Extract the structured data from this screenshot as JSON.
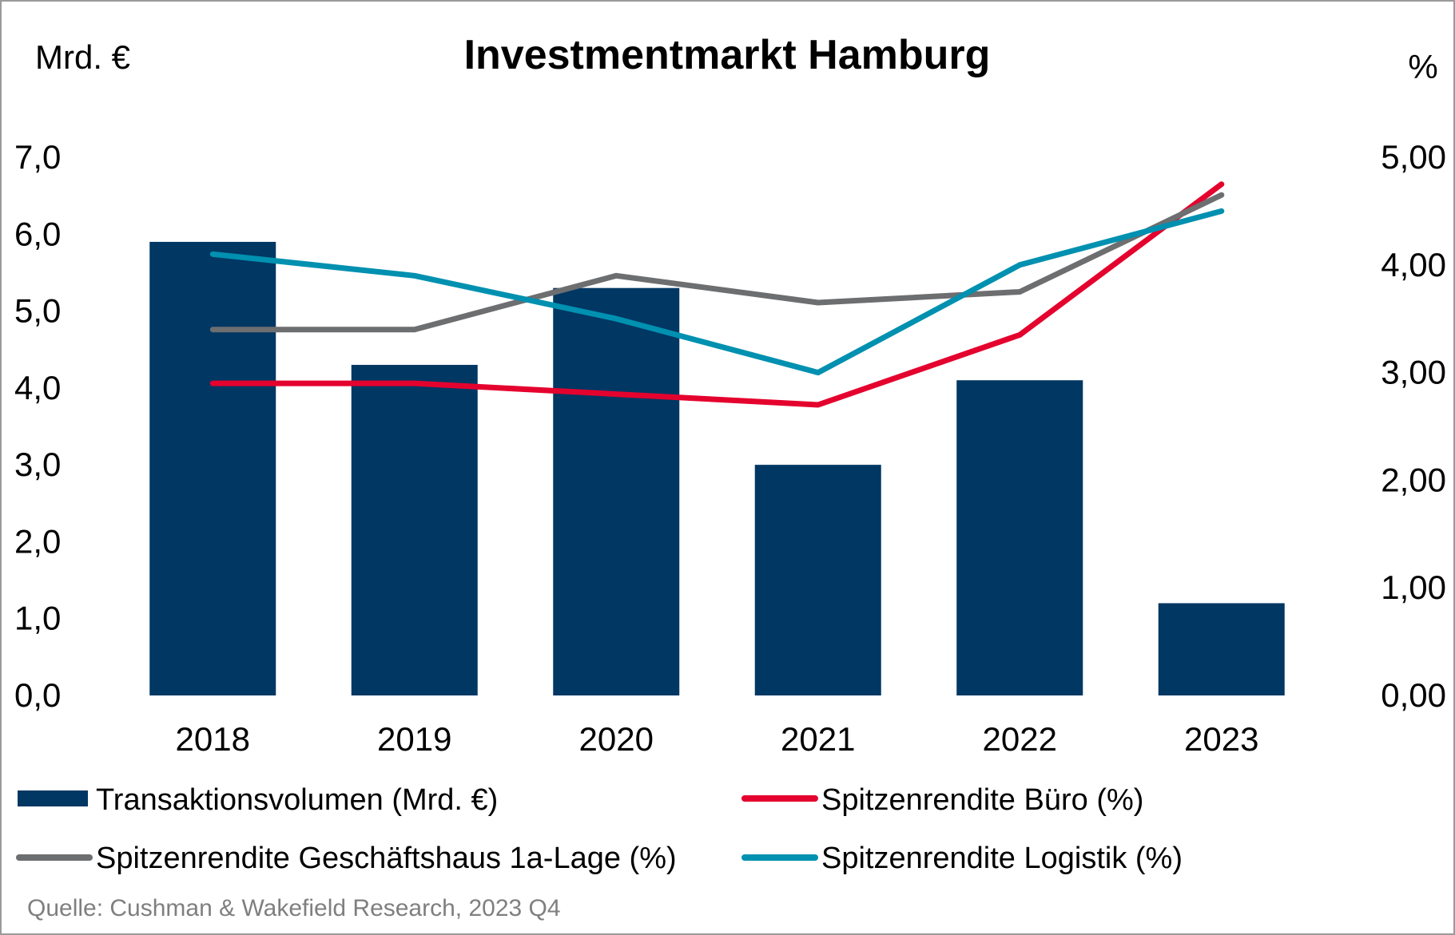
{
  "chart_data": {
    "type": "bar",
    "title": "Investmentmarkt Hamburg",
    "y_left_label": "Mrd. €",
    "y_right_label": "%",
    "categories": [
      "2018",
      "2019",
      "2020",
      "2021",
      "2022",
      "2023"
    ],
    "y_left": {
      "min": 0,
      "max": 7,
      "ticks": [
        "0,0",
        "1,0",
        "2,0",
        "3,0",
        "4,0",
        "5,0",
        "6,0",
        "7,0"
      ]
    },
    "y_right": {
      "min": 0,
      "max": 5,
      "ticks": [
        "0,00",
        "1,00",
        "2,00",
        "3,00",
        "4,00",
        "5,00"
      ]
    },
    "bars": {
      "name": "Transaktionsvolumen (Mrd. €)",
      "axis": "left",
      "color": "#003763",
      "values": [
        5.9,
        4.3,
        5.3,
        3.0,
        4.1,
        1.2
      ]
    },
    "series": [
      {
        "name": "Spitzenrendite Büro (%)",
        "axis": "right",
        "type": "line",
        "color": "#e4032e",
        "values": [
          2.9,
          2.9,
          2.8,
          2.7,
          3.35,
          4.75
        ]
      },
      {
        "name": "Spitzenrendite Geschäftshaus 1a-Lage (%)",
        "axis": "right",
        "type": "line",
        "color": "#6d6e70",
        "values": [
          3.4,
          3.4,
          3.9,
          3.65,
          3.75,
          4.65
        ]
      },
      {
        "name": "Spitzenrendite Logistik (%)",
        "axis": "right",
        "type": "line",
        "color": "#0090b0",
        "values": [
          4.1,
          3.9,
          3.5,
          3.0,
          4.0,
          4.5
        ]
      }
    ],
    "legend_position": "bottom",
    "grid": false,
    "source": "Quelle: Cushman & Wakefield Research, 2023 Q4"
  }
}
